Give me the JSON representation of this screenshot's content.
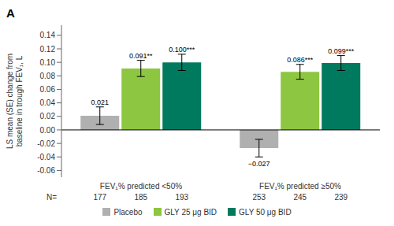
{
  "chart_data": {
    "type": "bar",
    "title": "A",
    "y_label": "LS mean (SE) change from\nbaseline in trough FEV₁, L",
    "categories": [
      "FEV₁% predicted <50%",
      "FEV₁% predicted ≥50%"
    ],
    "series": [
      {
        "name": "Placebo",
        "color": "#b0b0b0",
        "values": [
          0.021,
          -0.027
        ],
        "errors": [
          0.013,
          0.013
        ],
        "value_labels": [
          "0.021",
          "−0.027"
        ],
        "n": [
          177,
          253
        ]
      },
      {
        "name": "GLY 25 μg BID",
        "color": "#8dc641",
        "values": [
          0.091,
          0.086
        ],
        "errors": [
          0.012,
          0.011
        ],
        "value_labels": [
          "0.091**",
          "0.086***"
        ],
        "n": [
          185,
          245
        ]
      },
      {
        "name": "GLY 50 μg BID",
        "color": "#007a5e",
        "values": [
          0.1,
          0.099
        ],
        "errors": [
          0.012,
          0.011
        ],
        "value_labels": [
          "0.100***",
          "0.099***"
        ],
        "n": [
          193,
          239
        ]
      }
    ],
    "n_label": "N=",
    "ylim": [
      -0.07,
      0.155
    ],
    "yticks": [
      -0.06,
      -0.04,
      -0.02,
      {
        "value": 0.0,
        "label": "0.00"
      },
      0.02,
      0.04,
      0.06,
      0.08,
      {
        "value": 0.1,
        "label": "0.10"
      },
      0.12,
      0.14
    ],
    "data_labels": true,
    "legend": "bottom",
    "grid": false
  }
}
